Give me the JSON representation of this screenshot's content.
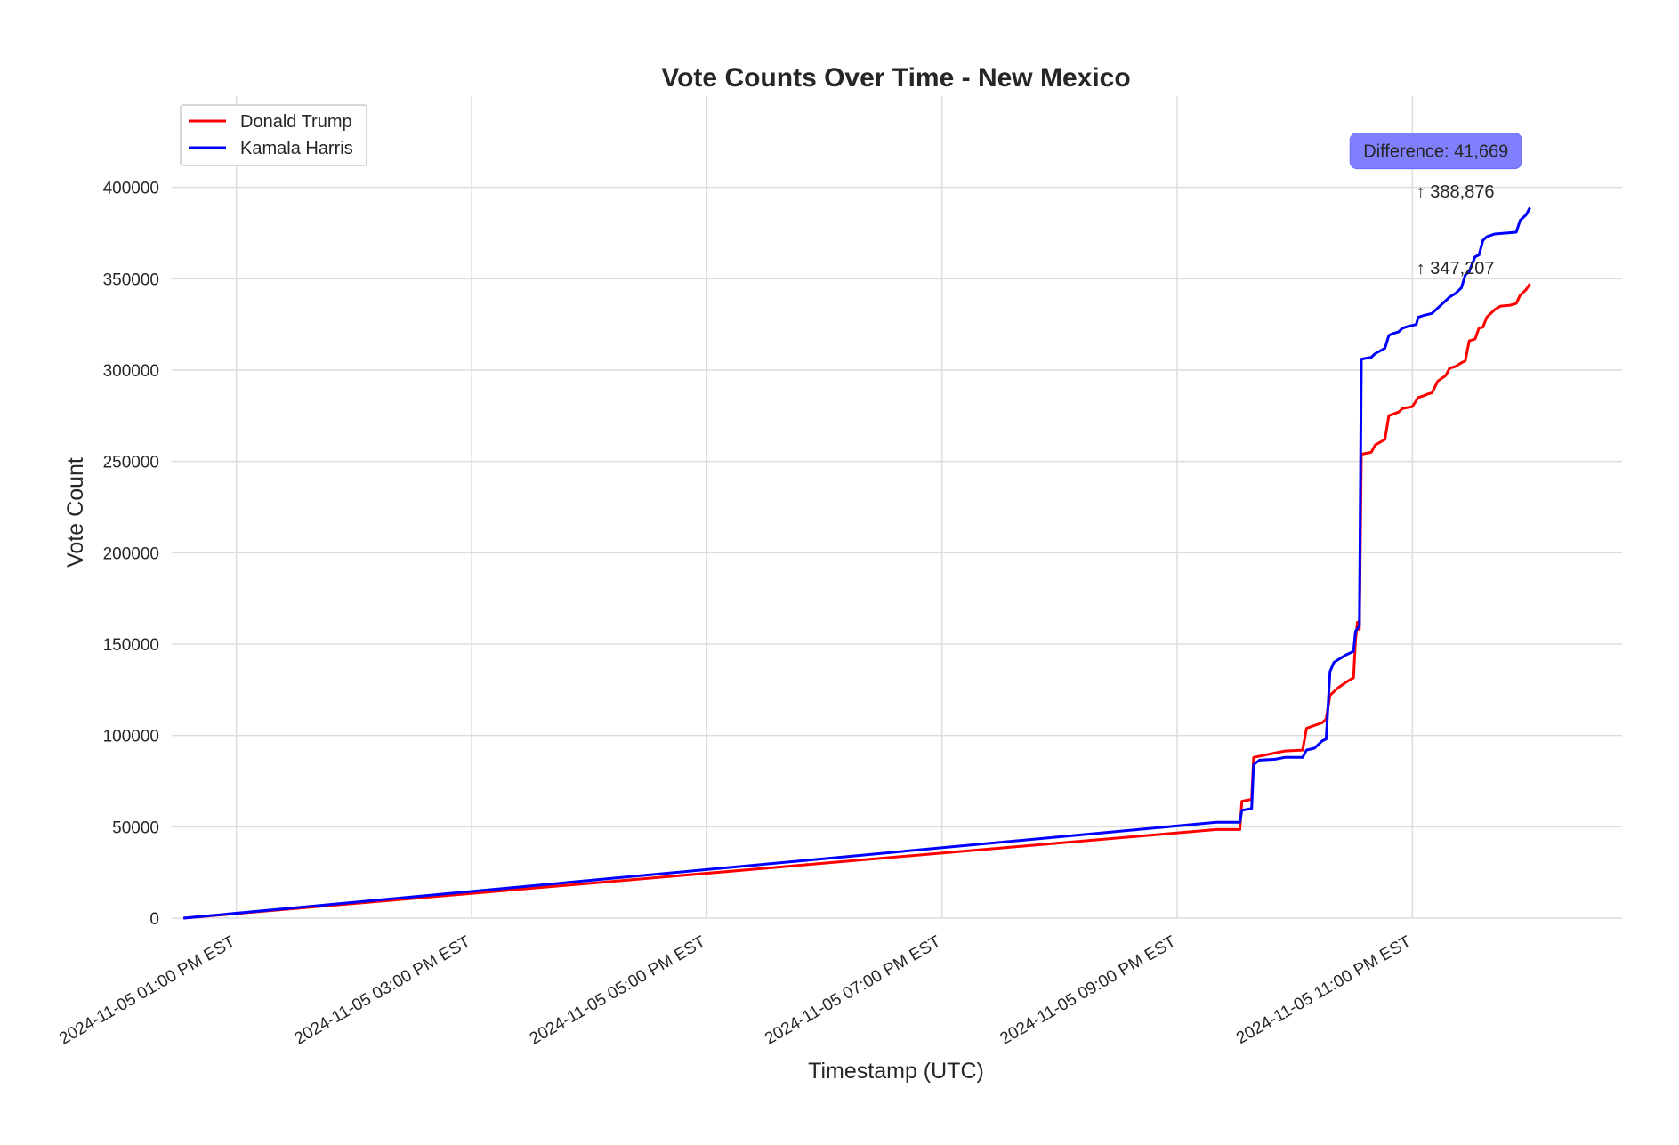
{
  "chart_data": {
    "type": "line",
    "title": "Vote Counts Over Time - New Mexico",
    "xlabel": "Timestamp (UTC)",
    "ylabel": "Vote Count",
    "ylim": [
      0,
      450000
    ],
    "yticks": [
      0,
      50000,
      100000,
      150000,
      200000,
      250000,
      300000,
      350000,
      400000
    ],
    "xlim": [
      "2024-11-05 12:27 PM EST",
      "2024-11-06 12:47 AM EST"
    ],
    "xticks": [
      {
        "value": "2024-11-05 01:00 PM",
        "label": "2024-11-05 01:00 PM EST"
      },
      {
        "value": "2024-11-05 03:00 PM",
        "label": "2024-11-05 03:00 PM EST"
      },
      {
        "value": "2024-11-05 05:00 PM",
        "label": "2024-11-05 05:00 PM EST"
      },
      {
        "value": "2024-11-05 07:00 PM",
        "label": "2024-11-05 07:00 PM EST"
      },
      {
        "value": "2024-11-05 09:00 PM",
        "label": "2024-11-05 09:00 PM EST"
      },
      {
        "value": "2024-11-05 11:00 PM",
        "label": "2024-11-05 11:00 PM EST"
      }
    ],
    "grid": true,
    "legend_position": "top-left",
    "series": [
      {
        "name": "Donald Trump",
        "color": "#ff0000",
        "points": [
          [
            "2024-11-05 12:33 PM",
            0
          ],
          [
            "2024-11-05 09:20 PM",
            48500
          ],
          [
            "2024-11-05 09:32 PM",
            48500
          ],
          [
            "2024-11-05 09:33 PM",
            64000
          ],
          [
            "2024-11-05 09:38 PM",
            65000
          ],
          [
            "2024-11-05 09:39 PM",
            88000
          ],
          [
            "2024-11-05 09:48 PM",
            90000
          ],
          [
            "2024-11-05 09:55 PM",
            91500
          ],
          [
            "2024-11-05 10:04 PM",
            92000
          ],
          [
            "2024-11-05 10:06 PM",
            104000
          ],
          [
            "2024-11-05 10:14 PM",
            107000
          ],
          [
            "2024-11-05 10:16 PM",
            109000
          ],
          [
            "2024-11-05 10:18 PM",
            122000
          ],
          [
            "2024-11-05 10:22 PM",
            126000
          ],
          [
            "2024-11-05 10:26 PM",
            129000
          ],
          [
            "2024-11-05 10:29 PM",
            131000
          ],
          [
            "2024-11-05 10:30 PM",
            131500
          ],
          [
            "2024-11-05 10:31 PM",
            152000
          ],
          [
            "2024-11-05 10:32 PM",
            162000
          ],
          [
            "2024-11-05 10:33 PM",
            158000
          ],
          [
            "2024-11-05 10:34 PM",
            254000
          ],
          [
            "2024-11-05 10:39 PM",
            255000
          ],
          [
            "2024-11-05 10:41 PM",
            259000
          ],
          [
            "2024-11-05 10:46 PM",
            262000
          ],
          [
            "2024-11-05 10:48 PM",
            275000
          ],
          [
            "2024-11-05 10:53 PM",
            277000
          ],
          [
            "2024-11-05 10:55 PM",
            279000
          ],
          [
            "2024-11-05 11:00 PM",
            280000
          ],
          [
            "2024-11-05 11:03 PM",
            285000
          ],
          [
            "2024-11-05 11:06 PM",
            286000
          ],
          [
            "2024-11-05 11:08 PM",
            287000
          ],
          [
            "2024-11-05 11:10 PM",
            287500
          ],
          [
            "2024-11-05 11:13 PM",
            294000
          ],
          [
            "2024-11-05 11:17 PM",
            297000
          ],
          [
            "2024-11-05 11:19 PM",
            301000
          ],
          [
            "2024-11-05 11:22 PM",
            302000
          ],
          [
            "2024-11-05 11:25 PM",
            304000
          ],
          [
            "2024-11-05 11:27 PM",
            305000
          ],
          [
            "2024-11-05 11:29 PM",
            316000
          ],
          [
            "2024-11-05 11:32 PM",
            317000
          ],
          [
            "2024-11-05 11:34 PM",
            323000
          ],
          [
            "2024-11-05 11:36 PM",
            323500
          ],
          [
            "2024-11-05 11:38 PM",
            329000
          ],
          [
            "2024-11-05 11:42 PM",
            333000
          ],
          [
            "2024-11-05 11:45 PM",
            335000
          ],
          [
            "2024-11-05 11:50 PM",
            335500
          ],
          [
            "2024-11-05 11:53 PM",
            336500
          ],
          [
            "2024-11-05 11:55 PM",
            341000
          ],
          [
            "2024-11-05 11:58 PM",
            344000
          ],
          [
            "2024-11-06 12:00 AM",
            347207
          ]
        ]
      },
      {
        "name": "Kamala Harris",
        "color": "#0000ff",
        "points": [
          [
            "2024-11-05 12:33 PM",
            0
          ],
          [
            "2024-11-05 09:20 PM",
            52500
          ],
          [
            "2024-11-05 09:32 PM",
            52500
          ],
          [
            "2024-11-05 09:33 PM",
            59000
          ],
          [
            "2024-11-05 09:38 PM",
            60000
          ],
          [
            "2024-11-05 09:39 PM",
            84000
          ],
          [
            "2024-11-05 09:42 PM",
            86500
          ],
          [
            "2024-11-05 09:50 PM",
            87000
          ],
          [
            "2024-11-05 09:55 PM",
            88000
          ],
          [
            "2024-11-05 10:04 PM",
            88000
          ],
          [
            "2024-11-05 10:06 PM",
            92000
          ],
          [
            "2024-11-05 10:10 PM",
            93000
          ],
          [
            "2024-11-05 10:14 PM",
            97000
          ],
          [
            "2024-11-05 10:16 PM",
            98000
          ],
          [
            "2024-11-05 10:18 PM",
            135000
          ],
          [
            "2024-11-05 10:20 PM",
            140000
          ],
          [
            "2024-11-05 10:23 PM",
            142000
          ],
          [
            "2024-11-05 10:26 PM",
            144000
          ],
          [
            "2024-11-05 10:28 PM",
            145000
          ],
          [
            "2024-11-05 10:30 PM",
            146000
          ],
          [
            "2024-11-05 10:31 PM",
            157000
          ],
          [
            "2024-11-05 10:33 PM",
            160000
          ],
          [
            "2024-11-05 10:34 PM",
            306000
          ],
          [
            "2024-11-05 10:39 PM",
            307000
          ],
          [
            "2024-11-05 10:41 PM",
            309000
          ],
          [
            "2024-11-05 10:46 PM",
            312000
          ],
          [
            "2024-11-05 10:48 PM",
            319000
          ],
          [
            "2024-11-05 10:50 PM",
            320000
          ],
          [
            "2024-11-05 10:53 PM",
            321000
          ],
          [
            "2024-11-05 10:55 PM",
            323000
          ],
          [
            "2024-11-05 10:58 PM",
            324000
          ],
          [
            "2024-11-05 11:02 PM",
            325000
          ],
          [
            "2024-11-05 11:03 PM",
            329000
          ],
          [
            "2024-11-05 11:06 PM",
            330000
          ],
          [
            "2024-11-05 11:10 PM",
            331000
          ],
          [
            "2024-11-05 11:13 PM",
            334000
          ],
          [
            "2024-11-05 11:17 PM",
            338000
          ],
          [
            "2024-11-05 11:19 PM",
            340000
          ],
          [
            "2024-11-05 11:22 PM",
            342000
          ],
          [
            "2024-11-05 11:25 PM",
            345000
          ],
          [
            "2024-11-05 11:27 PM",
            352000
          ],
          [
            "2024-11-05 11:29 PM",
            354000
          ],
          [
            "2024-11-05 11:32 PM",
            362000
          ],
          [
            "2024-11-05 11:34 PM",
            363000
          ],
          [
            "2024-11-05 11:36 PM",
            371000
          ],
          [
            "2024-11-05 11:38 PM",
            373000
          ],
          [
            "2024-11-05 11:42 PM",
            374500
          ],
          [
            "2024-11-05 11:53 PM",
            375500
          ],
          [
            "2024-11-05 11:55 PM",
            382000
          ],
          [
            "2024-11-05 11:58 PM",
            385000
          ],
          [
            "2024-11-06 12:00 AM",
            388876
          ]
        ]
      }
    ],
    "annotations": [
      {
        "text": "↑ 388,876",
        "x": "2024-11-05 11:02 PM",
        "y": 398000,
        "series": "Kamala Harris"
      },
      {
        "text": "↑ 347,207",
        "x": "2024-11-05 11:02 PM",
        "y": 356000,
        "series": "Donald Trump"
      },
      {
        "text": "Difference: 41,669",
        "x": "2024-11-05 11:12 PM",
        "y": 420000,
        "box_color": "#8080ff"
      }
    ]
  }
}
